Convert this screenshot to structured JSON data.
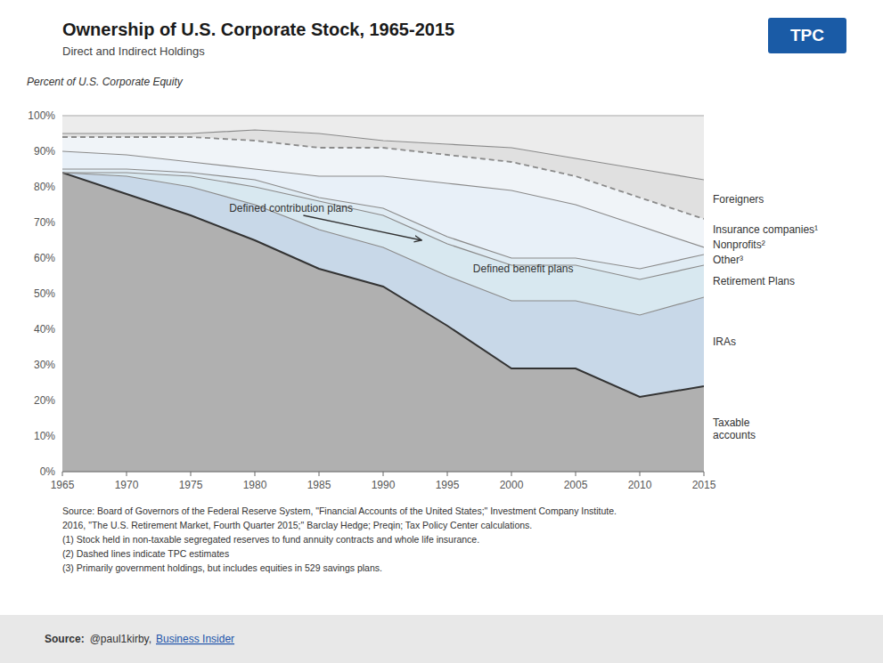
{
  "chart_data": {
    "type": "area",
    "title": "Ownership of U.S. Corporate Stock, 1965-2015",
    "subtitle": "Direct and Indirect Holdings",
    "y_label": "Percent of U.S. Corporate Equity",
    "x": [
      1965,
      1970,
      1975,
      1980,
      1985,
      1990,
      1995,
      2000,
      2005,
      2010,
      2015
    ],
    "series": [
      {
        "name": "Taxable\naccounts",
        "color": "#b0b0b0",
        "line_style": "solid",
        "values": [
          84,
          78,
          72,
          65,
          57,
          52,
          41,
          29,
          29,
          21,
          24
        ]
      },
      {
        "name": "IRAs",
        "color": "#c8d8e8",
        "line_style": "solid",
        "values": [
          84,
          83,
          80,
          75,
          68,
          63,
          55,
          48,
          48,
          44,
          49
        ]
      },
      {
        "name": "Retirement Plans",
        "color": "#d8e8f0",
        "line_style": "solid",
        "values": [
          84,
          84,
          83,
          80,
          76,
          72,
          64,
          58,
          58,
          54,
          58
        ]
      },
      {
        "name": "Other³",
        "color": "#e0ecf4",
        "line_style": "solid",
        "values": [
          85,
          85,
          84,
          82,
          77,
          74,
          66,
          60,
          60,
          57,
          61
        ]
      },
      {
        "name": "Nonprofits²",
        "color": "#e8f0f8",
        "line_style": "solid",
        "values": [
          90,
          89,
          87,
          85,
          83,
          83,
          81,
          79,
          75,
          69,
          63
        ]
      },
      {
        "name": "Insurance companies¹",
        "color": "#f0f4f8",
        "line_style": "dashed",
        "values": [
          94,
          94,
          94,
          93,
          91,
          91,
          89,
          87,
          83,
          77,
          71
        ]
      },
      {
        "name": "Foreigners",
        "color": "#e0e0e0",
        "line_style": "solid",
        "values": [
          95,
          95,
          95,
          96,
          95,
          93,
          92,
          91,
          88,
          85,
          82
        ]
      }
    ],
    "top_line": 100,
    "xlim": [
      1965,
      2015
    ],
    "xticks": [
      1965,
      1970,
      1975,
      1980,
      1985,
      1990,
      1995,
      2000,
      2005,
      2010,
      2015
    ],
    "ylim": [
      0,
      105
    ],
    "yticks": [
      {
        "value": 0,
        "label": "0%"
      },
      {
        "value": 10,
        "label": "10%"
      },
      {
        "value": 20,
        "label": "20%"
      },
      {
        "value": 30,
        "label": "30%"
      },
      {
        "value": 40,
        "label": "40%"
      },
      {
        "value": 50,
        "label": "50%"
      },
      {
        "value": 60,
        "label": "60%"
      },
      {
        "value": 70,
        "label": "70%"
      },
      {
        "value": 80,
        "label": "80%"
      },
      {
        "value": 90,
        "label": "90%"
      },
      {
        "value": 100,
        "label": "100%"
      }
    ],
    "grid": true,
    "annotations": [
      {
        "text": "Defined contribution plans",
        "x": 1978,
        "y": 73,
        "arrow_x": 1993,
        "arrow_y": 65
      },
      {
        "text": "Defined benefit plans",
        "x": 1997,
        "y": 56
      }
    ],
    "logo": "TPC",
    "source_text": "Source: Board of Governors of the Federal Reserve System, \"Financial Accounts of the United States;\" Investment Company Institute.\n2016, \"The U.S. Retirement Market, Fourth Quarter 2015;\" Barclay Hedge; Preqin; Tax Policy Center calculations.\n(1) Stock held in non-taxable segregated reserves to fund annuity contracts and whole life insurance.\n(2) Dashed lines indicate TPC estimates\n(3) Primarily government holdings, but includes equities in 529 savings plans.",
    "credit": {
      "label": "Source:",
      "text": "@paul1kirby,",
      "link": "Business Insider"
    }
  }
}
